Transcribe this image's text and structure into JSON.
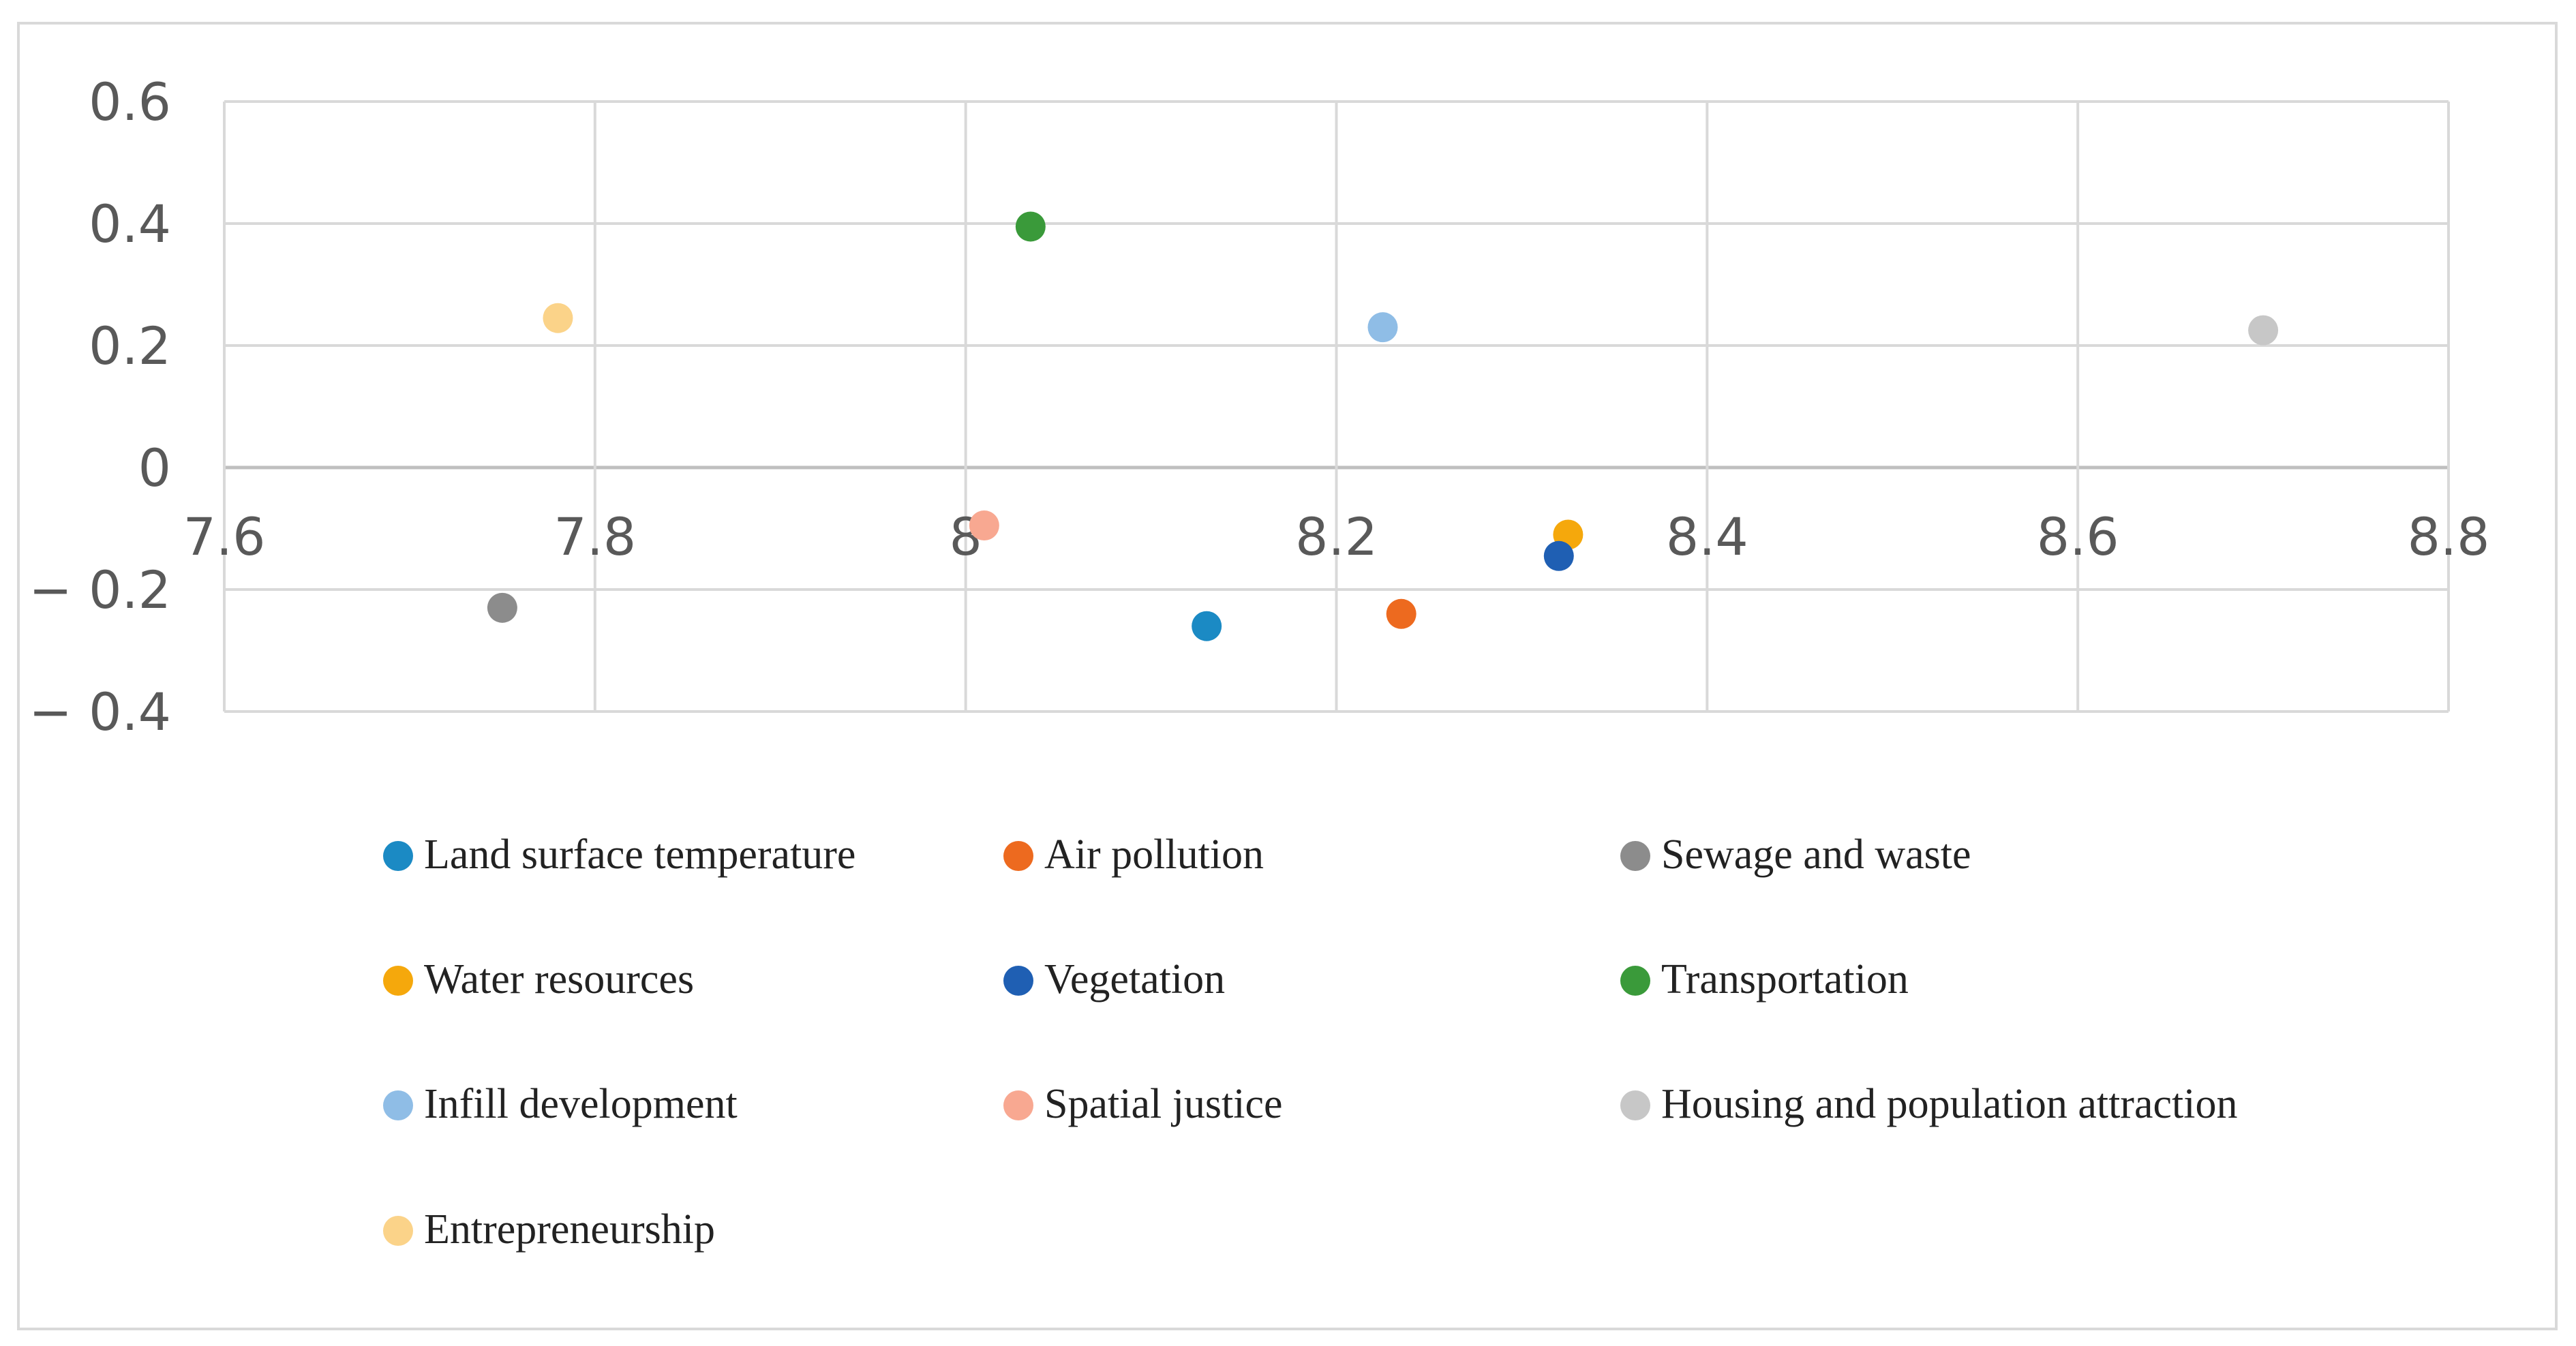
{
  "chart_data": {
    "type": "scatter",
    "title": "",
    "xlabel": "",
    "ylabel": "",
    "xlim": [
      7.6,
      8.8
    ],
    "ylim": [
      -0.4,
      0.6
    ],
    "x_ticks": [
      7.6,
      7.8,
      8.0,
      8.2,
      8.4,
      8.6,
      8.8
    ],
    "x_tick_labels": [
      "7.6",
      "7.8",
      "8",
      "8.2",
      "8.4",
      "8.6",
      "8.8"
    ],
    "y_ticks": [
      0.6,
      0.4,
      0.2,
      0,
      -0.2,
      -0.4
    ],
    "y_tick_labels": [
      "0.6",
      "0.4",
      "0.2",
      "0",
      "− 0.2",
      "− 0.4"
    ],
    "grid": true,
    "legend_position": "bottom",
    "series": [
      {
        "name": "Land surface temperature",
        "color": "#1b8ac4",
        "x": 8.13,
        "y": -0.26
      },
      {
        "name": "Air pollution",
        "color": "#ed6a1f",
        "x": 8.235,
        "y": -0.24
      },
      {
        "name": "Sewage and waste",
        "color": "#8c8c8c",
        "x": 7.75,
        "y": -0.23
      },
      {
        "name": "Water resources",
        "color": "#f5a80c",
        "x": 8.325,
        "y": -0.11
      },
      {
        "name": "Vegetation",
        "color": "#1f5fb3",
        "x": 8.32,
        "y": -0.145
      },
      {
        "name": "Transportation",
        "color": "#3a9a3a",
        "x": 8.035,
        "y": 0.395
      },
      {
        "name": "Infill development",
        "color": "#8fbde6",
        "x": 8.225,
        "y": 0.23
      },
      {
        "name": "Spatial justice",
        "color": "#f8a891",
        "x": 8.01,
        "y": -0.095
      },
      {
        "name": "Housing and population attraction",
        "color": "#c7c7c7",
        "x": 8.7,
        "y": 0.225
      },
      {
        "name": "Entrepreneurship",
        "color": "#fbd389",
        "x": 7.78,
        "y": 0.245
      }
    ]
  }
}
